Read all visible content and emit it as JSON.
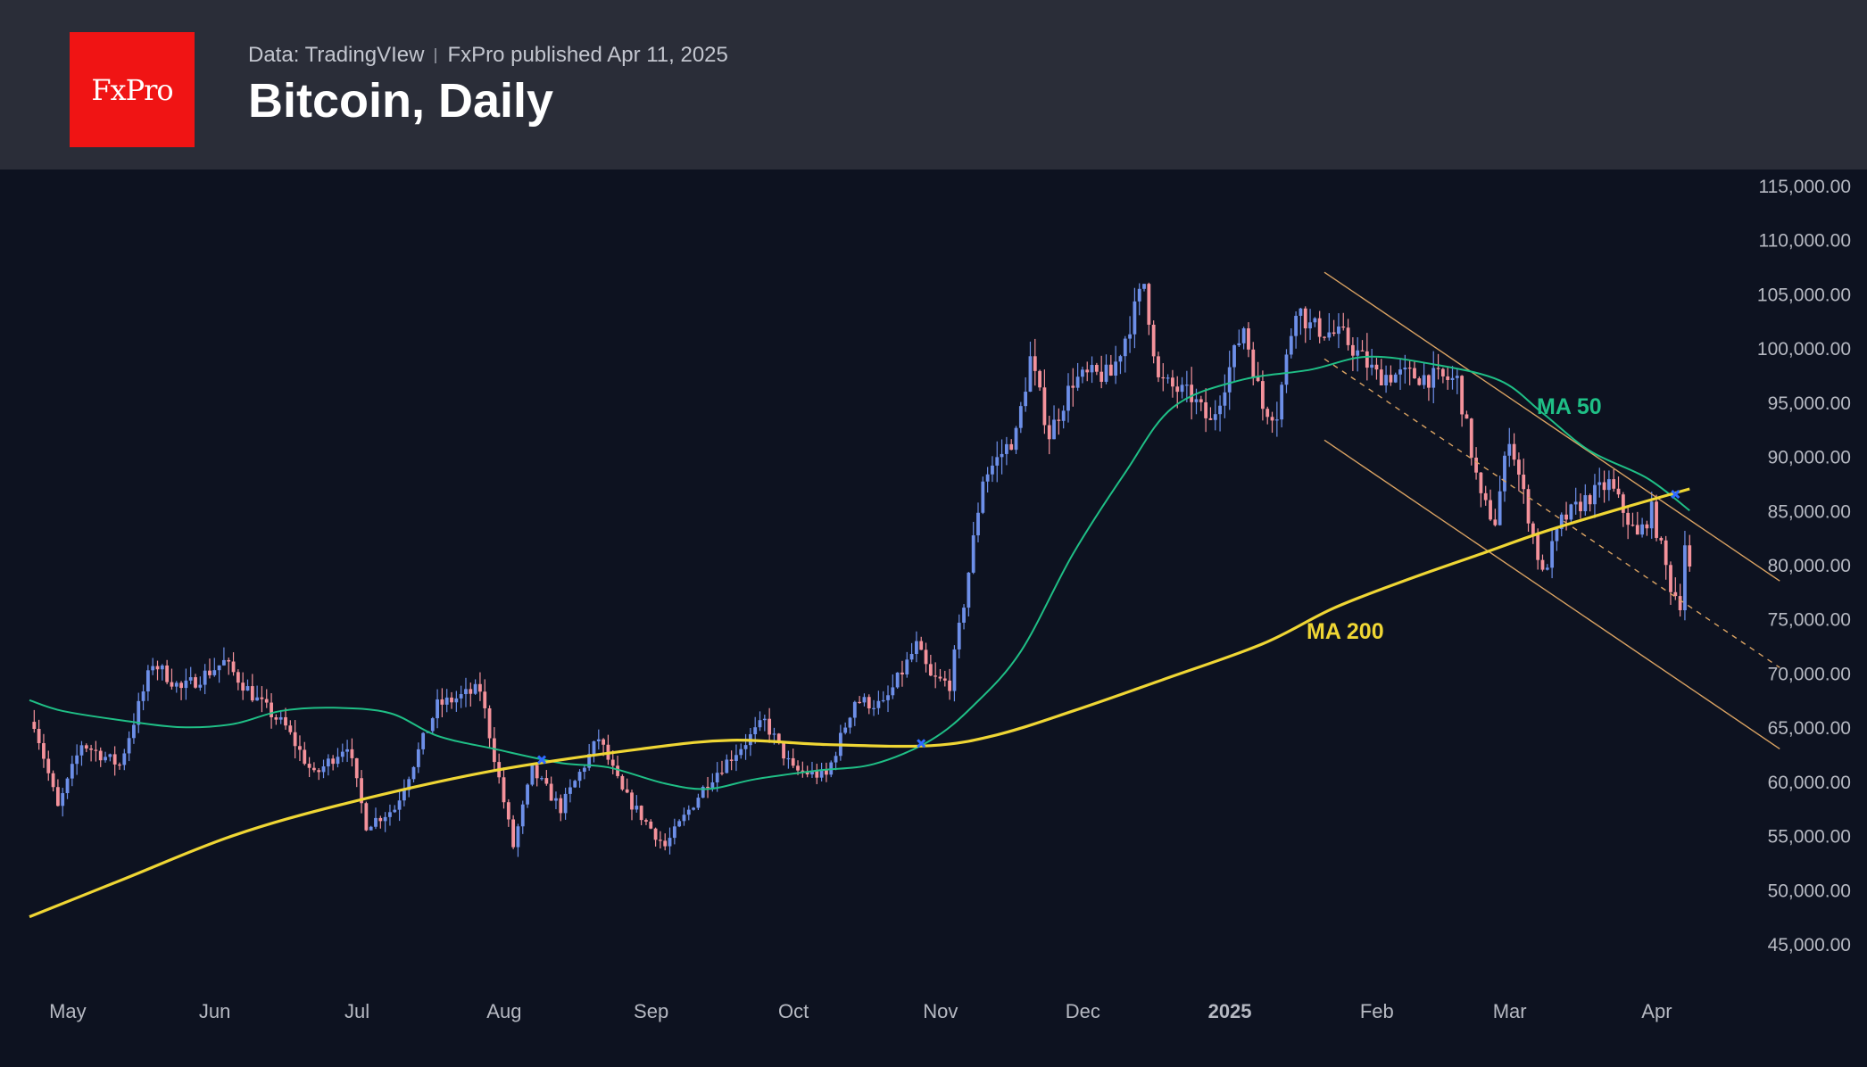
{
  "header": {
    "brand": "FxPro",
    "source": "Data: TradingVIew",
    "published": "FxPro published Apr 11, 2025",
    "title": "Bitcoin, Daily"
  },
  "colors": {
    "header_bg": "#2a2d38",
    "chart_bg": "#0d1220",
    "logo_bg": "#f01414",
    "candle_up": "#6d8fe8",
    "candle_down": "#f4929b",
    "ma50": "#1fbf86",
    "ma200": "#efd634",
    "channel": "#d9a262",
    "cross_marker": "#2f6bff",
    "axis_text": "#b6b9c2"
  },
  "chart_data": {
    "type": "candlestick",
    "title": "Bitcoin, Daily",
    "x_ticks": [
      "May",
      "Jun",
      "Jul",
      "Aug",
      "Sep",
      "Oct",
      "Nov",
      "Dec",
      "2025",
      "Feb",
      "Mar",
      "Apr"
    ],
    "y_ticks": [
      "115,000.00",
      "110,000.00",
      "105,000.00",
      "100,000.00",
      "95,000.00",
      "90,000.00",
      "85,000.00",
      "80,000.00",
      "75,000.00",
      "70,000.00",
      "65,000.00",
      "60,000.00",
      "55,000.00",
      "50,000.00",
      "45,000.00"
    ],
    "ylim": [
      45000,
      115000
    ],
    "x_range": [
      "2024-04-25",
      "2025-04-10"
    ],
    "price_anchors": [
      [
        "2024-04-26",
        65500
      ],
      [
        "2024-05-01",
        57500
      ],
      [
        "2024-05-06",
        63500
      ],
      [
        "2024-05-14",
        61500
      ],
      [
        "2024-05-21",
        71000
      ],
      [
        "2024-05-27",
        68500
      ],
      [
        "2024-06-05",
        71000
      ],
      [
        "2024-06-12",
        67500
      ],
      [
        "2024-06-18",
        65000
      ],
      [
        "2024-06-24",
        60500
      ],
      [
        "2024-07-01",
        63500
      ],
      [
        "2024-07-05",
        56000
      ],
      [
        "2024-07-11",
        57500
      ],
      [
        "2024-07-20",
        67000
      ],
      [
        "2024-07-29",
        68500
      ],
      [
        "2024-08-05",
        54000
      ],
      [
        "2024-08-09",
        61000
      ],
      [
        "2024-08-15",
        57500
      ],
      [
        "2024-08-23",
        64000
      ],
      [
        "2024-08-28",
        59000
      ],
      [
        "2024-09-06",
        54000
      ],
      [
        "2024-09-15",
        60000
      ],
      [
        "2024-09-27",
        65500
      ],
      [
        "2024-10-03",
        61000
      ],
      [
        "2024-10-10",
        60500
      ],
      [
        "2024-10-16",
        67500
      ],
      [
        "2024-10-22",
        67000
      ],
      [
        "2024-10-29",
        72500
      ],
      [
        "2024-11-01",
        69500
      ],
      [
        "2024-11-05",
        69000
      ],
      [
        "2024-11-08",
        76500
      ],
      [
        "2024-11-12",
        88000
      ],
      [
        "2024-11-19",
        92000
      ],
      [
        "2024-11-22",
        99000
      ],
      [
        "2024-11-26",
        92000
      ],
      [
        "2024-12-01",
        97000
      ],
      [
        "2024-12-05",
        97500
      ],
      [
        "2024-12-09",
        97500
      ],
      [
        "2024-12-12",
        101000
      ],
      [
        "2024-12-16",
        106000
      ],
      [
        "2024-12-19",
        97000
      ],
      [
        "2024-12-26",
        95500
      ],
      [
        "2024-12-30",
        93000
      ],
      [
        "2025-01-06",
        102000
      ],
      [
        "2025-01-10",
        94500
      ],
      [
        "2025-01-13",
        94000
      ],
      [
        "2025-01-17",
        104000
      ],
      [
        "2025-01-20",
        102000
      ],
      [
        "2025-01-27",
        101000
      ],
      [
        "2025-02-03",
        97500
      ],
      [
        "2025-02-10",
        97500
      ],
      [
        "2025-02-20",
        97000
      ],
      [
        "2025-02-25",
        86000
      ],
      [
        "2025-02-28",
        84000
      ],
      [
        "2025-03-03",
        92000
      ],
      [
        "2025-03-10",
        79000
      ],
      [
        "2025-03-14",
        84000
      ],
      [
        "2025-03-19",
        86000
      ],
      [
        "2025-03-24",
        87500
      ],
      [
        "2025-03-30",
        82500
      ],
      [
        "2025-04-02",
        85000
      ],
      [
        "2025-04-06",
        78000
      ],
      [
        "2025-04-08",
        76500
      ],
      [
        "2025-04-09",
        82000
      ],
      [
        "2025-04-10",
        79500
      ]
    ],
    "series": [
      {
        "name": "MA 50",
        "values": [
          [
            "2024-04-25",
            67500
          ],
          [
            "2024-05-02",
            66500
          ],
          [
            "2024-05-15",
            65600
          ],
          [
            "2024-05-27",
            65000
          ],
          [
            "2024-06-07",
            65300
          ],
          [
            "2024-06-17",
            66500
          ],
          [
            "2024-06-28",
            66800
          ],
          [
            "2024-07-10",
            66300
          ],
          [
            "2024-07-20",
            64200
          ],
          [
            "2024-08-01",
            63000
          ],
          [
            "2024-08-15",
            61700
          ],
          [
            "2024-08-25",
            61300
          ],
          [
            "2024-09-06",
            59800
          ],
          [
            "2024-09-15",
            59300
          ],
          [
            "2024-09-25",
            60200
          ],
          [
            "2024-10-08",
            61000
          ],
          [
            "2024-10-20",
            61600
          ],
          [
            "2024-11-01",
            63800
          ],
          [
            "2024-11-10",
            67000
          ],
          [
            "2024-11-20",
            72000
          ],
          [
            "2024-12-01",
            81000
          ],
          [
            "2024-12-12",
            88500
          ],
          [
            "2024-12-22",
            94500
          ],
          [
            "2025-01-05",
            97000
          ],
          [
            "2025-01-20",
            98000
          ],
          [
            "2025-02-01",
            99200
          ],
          [
            "2025-02-15",
            98500
          ],
          [
            "2025-03-01",
            97000
          ],
          [
            "2025-03-10",
            94000
          ],
          [
            "2025-03-20",
            90500
          ],
          [
            "2025-04-01",
            88000
          ],
          [
            "2025-04-10",
            85000
          ]
        ]
      },
      {
        "name": "MA 200",
        "values": [
          [
            "2024-04-25",
            47500
          ],
          [
            "2024-05-15",
            51000
          ],
          [
            "2024-06-07",
            55000
          ],
          [
            "2024-07-01",
            58000
          ],
          [
            "2024-08-01",
            61000
          ],
          [
            "2024-09-01",
            63000
          ],
          [
            "2024-09-20",
            63800
          ],
          [
            "2024-10-10",
            63400
          ],
          [
            "2024-11-01",
            63300
          ],
          [
            "2024-11-15",
            64300
          ],
          [
            "2024-12-01",
            66500
          ],
          [
            "2024-12-20",
            69400
          ],
          [
            "2025-01-10",
            72700
          ],
          [
            "2025-01-25",
            76000
          ],
          [
            "2025-02-10",
            78700
          ],
          [
            "2025-02-25",
            81000
          ],
          [
            "2025-03-10",
            83000
          ],
          [
            "2025-03-25",
            85000
          ],
          [
            "2025-04-10",
            87000
          ]
        ]
      }
    ],
    "labels": [
      "MA 50",
      "MA 200"
    ],
    "golden_cross_markers": [
      [
        "2024-08-11",
        62000
      ],
      [
        "2024-10-30",
        63500
      ],
      [
        "2025-04-07",
        86500
      ]
    ],
    "channel": {
      "upper": [
        [
          "2025-01-23",
          107000
        ],
        [
          "2025-04-29",
          78500
        ]
      ],
      "middle": [
        [
          "2025-01-23",
          99000
        ],
        [
          "2025-04-29",
          70500
        ]
      ],
      "lower": [
        [
          "2025-01-23",
          91500
        ],
        [
          "2025-04-29",
          63000
        ]
      ]
    }
  }
}
